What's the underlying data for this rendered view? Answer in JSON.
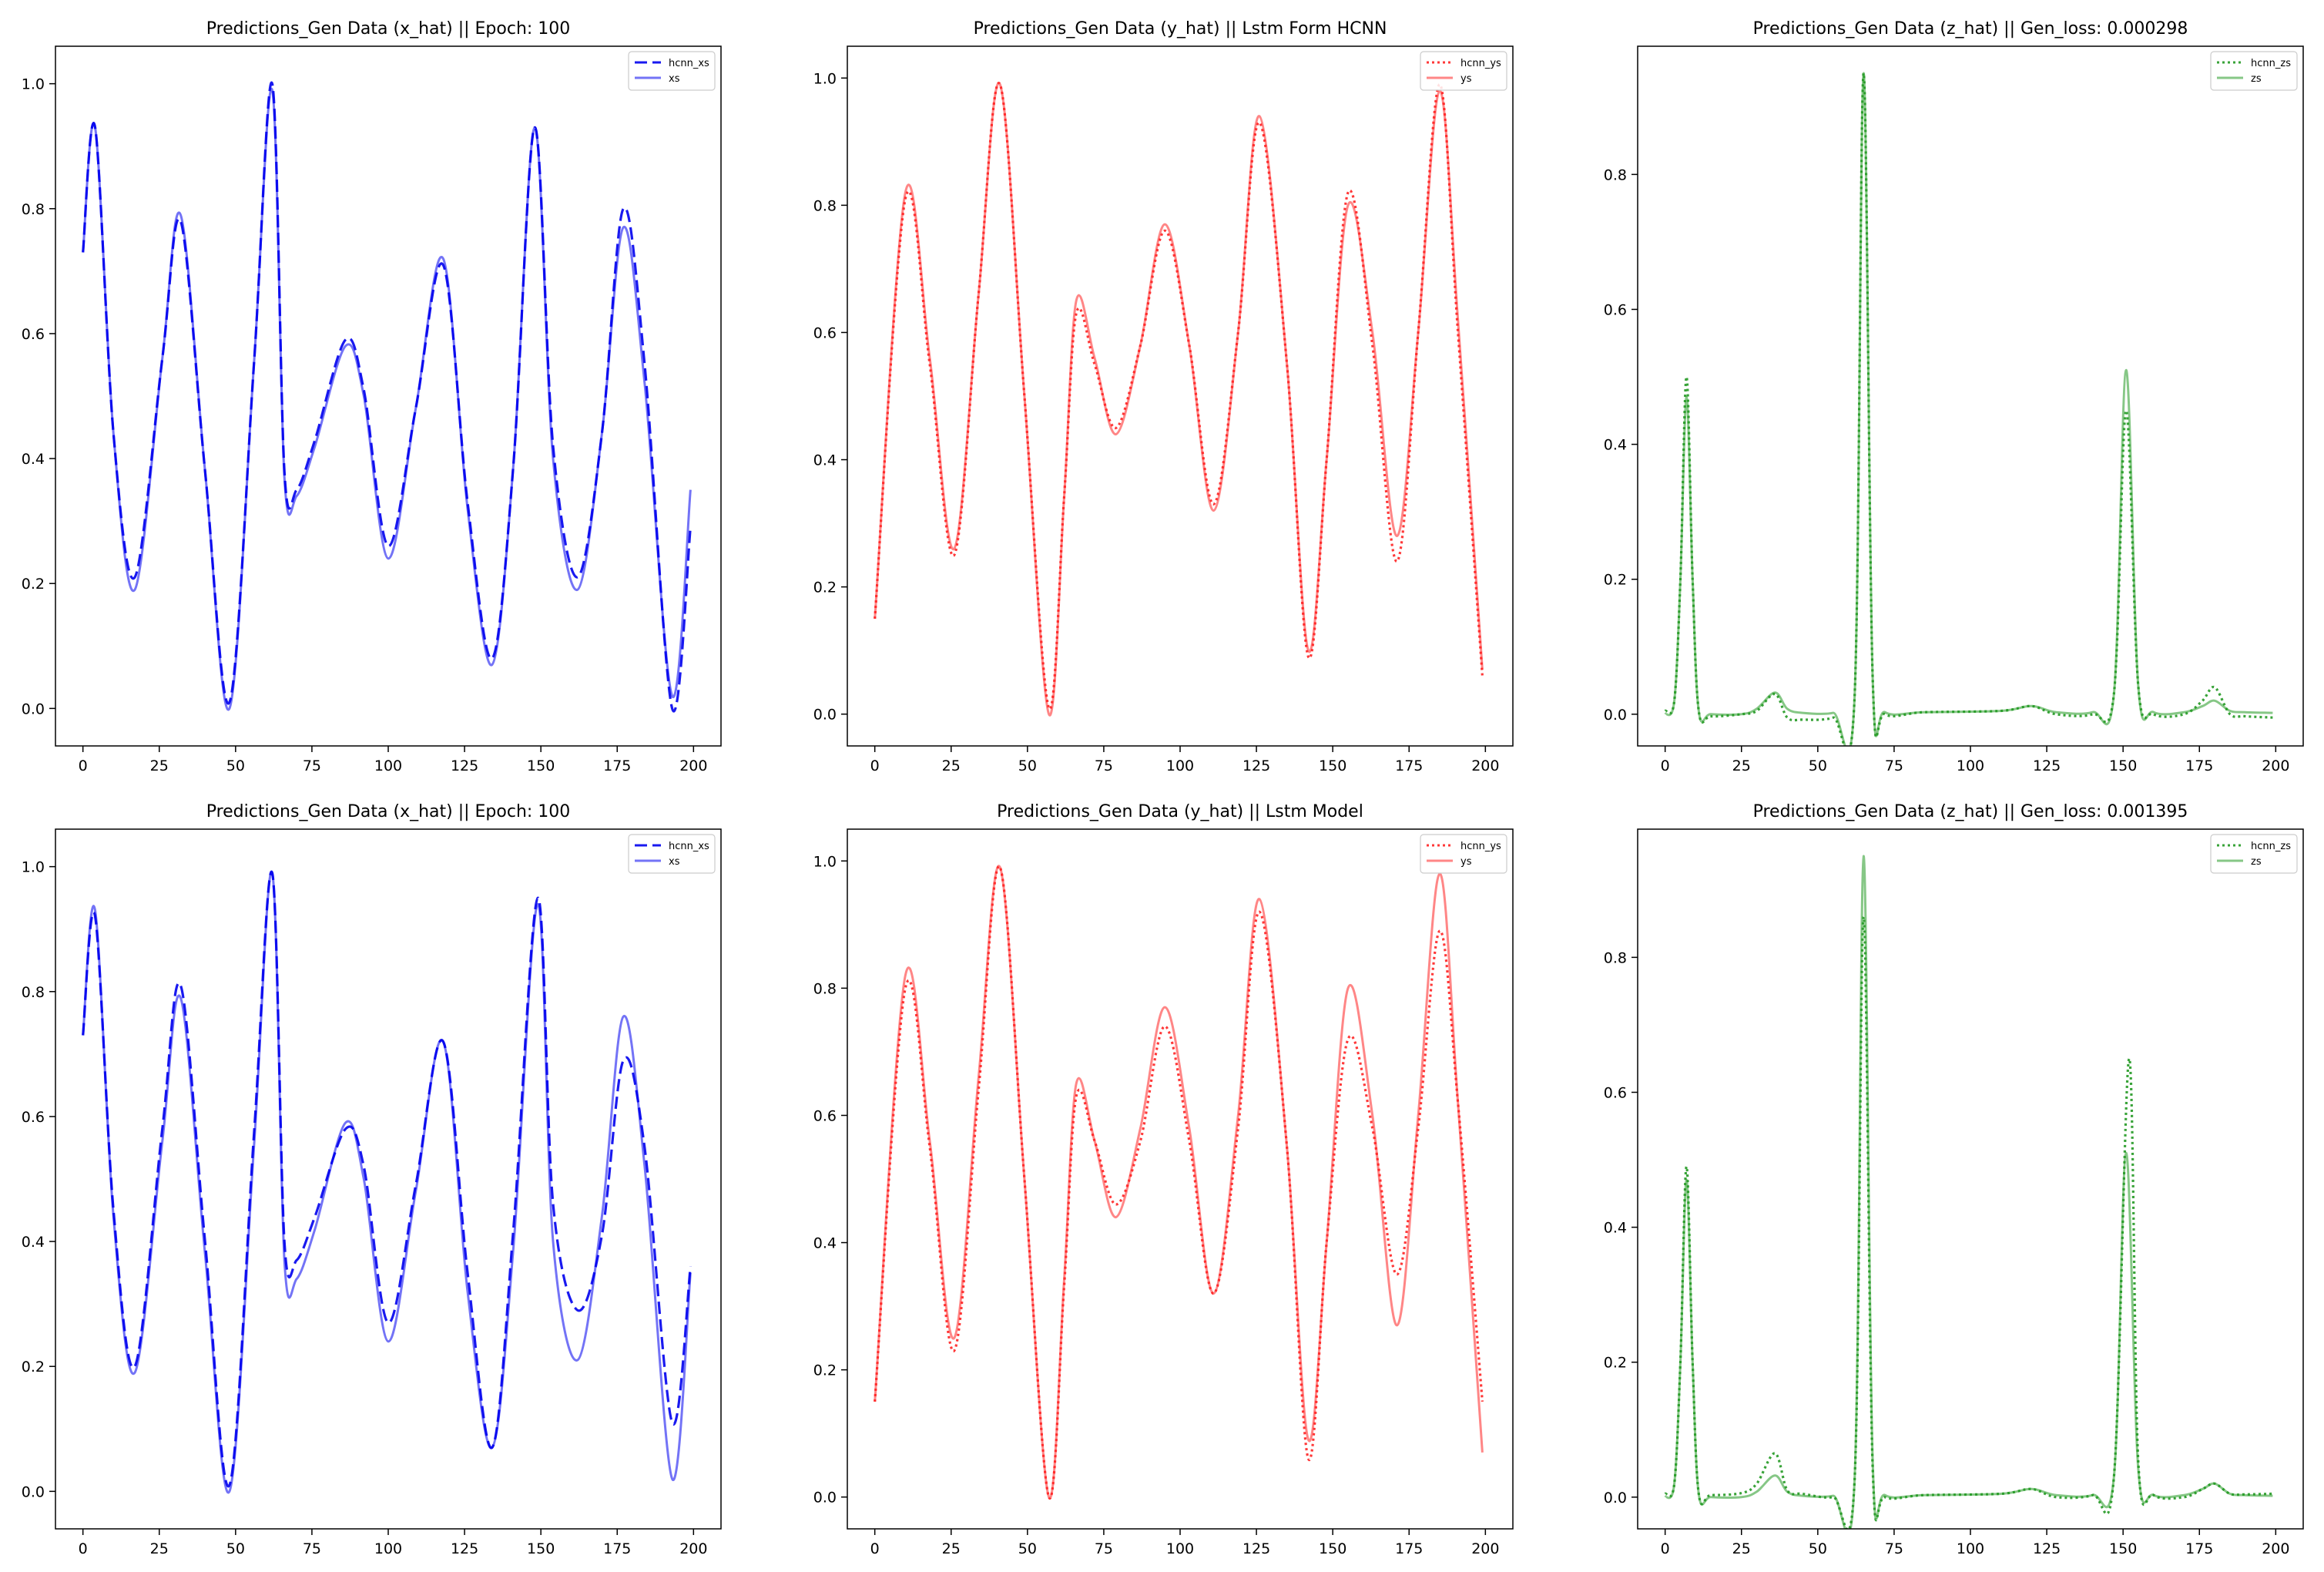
{
  "figure": {
    "colors": {
      "x": "#0000ee",
      "y": "#ff2222",
      "z": "#229922"
    }
  },
  "chart_data": [
    {
      "type": "line",
      "title": "Predictions_Gen Data (x_hat) || Epoch: 100",
      "xlim": [
        -9,
        209
      ],
      "ylim": [
        -0.06,
        1.06
      ],
      "xticks": [
        "0",
        "25",
        "50",
        "75",
        "100",
        "125",
        "150",
        "175",
        "200"
      ],
      "yticks": [
        "0.0",
        "0.2",
        "0.4",
        "0.6",
        "0.8",
        "1.0"
      ],
      "legend_placement": "upper-right",
      "grid": false,
      "series": [
        {
          "name": "hcnn_xs",
          "color": "#0000ee",
          "style": "dashed",
          "alpha": 0.9,
          "x": [
            0,
            4,
            10,
            17,
            26,
            32,
            40,
            48,
            56,
            62,
            66,
            70,
            76,
            86,
            92,
            100,
            109,
            118,
            126,
            134,
            141,
            148,
            154,
            162,
            170,
            177,
            184,
            193,
            199
          ],
          "y": [
            0.73,
            0.93,
            0.44,
            0.21,
            0.56,
            0.78,
            0.38,
            0.01,
            0.55,
            1.0,
            0.38,
            0.35,
            0.43,
            0.59,
            0.51,
            0.26,
            0.48,
            0.71,
            0.33,
            0.08,
            0.39,
            0.93,
            0.42,
            0.21,
            0.44,
            0.8,
            0.55,
            0.0,
            0.29
          ]
        },
        {
          "name": "xs",
          "color": "#0000ee",
          "style": "solid",
          "alpha": 0.55,
          "x": [
            0,
            4,
            10,
            17,
            26,
            32,
            40,
            48,
            56,
            62,
            66,
            70,
            76,
            86,
            92,
            100,
            109,
            118,
            126,
            134,
            141,
            148,
            154,
            162,
            170,
            177,
            184,
            193,
            199
          ],
          "y": [
            0.73,
            0.93,
            0.44,
            0.19,
            0.56,
            0.79,
            0.38,
            0.0,
            0.55,
            0.99,
            0.37,
            0.34,
            0.42,
            0.58,
            0.5,
            0.24,
            0.48,
            0.72,
            0.32,
            0.07,
            0.39,
            0.93,
            0.4,
            0.19,
            0.44,
            0.77,
            0.52,
            0.02,
            0.35
          ]
        }
      ]
    },
    {
      "type": "line",
      "title": "Predictions_Gen Data (y_hat) || Lstm Form HCNN",
      "xlim": [
        -9,
        209
      ],
      "ylim": [
        -0.05,
        1.05
      ],
      "xticks": [
        "0",
        "25",
        "50",
        "75",
        "100",
        "125",
        "150",
        "175",
        "200"
      ],
      "yticks": [
        "0.0",
        "0.2",
        "0.4",
        "0.6",
        "0.8",
        "1.0"
      ],
      "legend_placement": "upper-right",
      "grid": false,
      "series": [
        {
          "name": "hcnn_ys",
          "color": "#ff2222",
          "style": "dotted",
          "alpha": 0.9,
          "x": [
            0,
            10,
            18,
            26,
            34,
            41,
            49,
            57,
            62,
            66,
            72,
            79,
            87,
            95,
            103,
            111,
            119,
            126,
            135,
            142,
            148,
            155,
            163,
            171,
            178,
            185,
            191,
            199
          ],
          "y": [
            0.15,
            0.81,
            0.55,
            0.25,
            0.66,
            0.99,
            0.5,
            0.01,
            0.34,
            0.63,
            0.55,
            0.45,
            0.58,
            0.76,
            0.58,
            0.33,
            0.6,
            0.93,
            0.55,
            0.09,
            0.4,
            0.82,
            0.58,
            0.24,
            0.6,
            0.99,
            0.6,
            0.06
          ]
        },
        {
          "name": "ys",
          "color": "#ff2222",
          "style": "solid",
          "alpha": 0.55,
          "x": [
            0,
            10,
            18,
            26,
            34,
            41,
            49,
            57,
            62,
            66,
            72,
            79,
            87,
            95,
            103,
            111,
            119,
            126,
            135,
            142,
            148,
            155,
            163,
            171,
            178,
            185,
            191,
            199
          ],
          "y": [
            0.15,
            0.82,
            0.56,
            0.26,
            0.66,
            0.99,
            0.5,
            0.0,
            0.34,
            0.65,
            0.56,
            0.44,
            0.58,
            0.77,
            0.58,
            0.32,
            0.6,
            0.94,
            0.55,
            0.1,
            0.4,
            0.8,
            0.6,
            0.28,
            0.6,
            0.98,
            0.62,
            0.07
          ]
        }
      ]
    },
    {
      "type": "line",
      "title": "Predictions_Gen Data (z_hat) || Gen_loss: 0.000298",
      "xlim": [
        -9,
        209
      ],
      "ylim": [
        -0.047,
        0.99
      ],
      "xticks": [
        "0",
        "25",
        "50",
        "75",
        "100",
        "125",
        "150",
        "175",
        "200"
      ],
      "yticks": [
        "0.0",
        "0.2",
        "0.4",
        "0.6",
        "0.8"
      ],
      "legend_placement": "upper-right",
      "grid": false,
      "series": [
        {
          "name": "hcnn_zs",
          "color": "#229922",
          "style": "dotted",
          "alpha": 0.9,
          "x": [
            0,
            3,
            5,
            7,
            9,
            11,
            15,
            25,
            30,
            36,
            40,
            45,
            55,
            62,
            65,
            68,
            72,
            85,
            110,
            120,
            128,
            140,
            147,
            151,
            155,
            160,
            170,
            176,
            180,
            185,
            190,
            199
          ],
          "y": [
            0.005,
            0.02,
            0.2,
            0.5,
            0.2,
            0.005,
            -0.003,
            0.0,
            0.005,
            0.03,
            -0.005,
            -0.008,
            -0.005,
            0.02,
            0.95,
            0.05,
            0.0,
            0.003,
            0.005,
            0.012,
            0.0,
            0.0,
            0.03,
            0.45,
            0.04,
            0.0,
            0.0,
            0.02,
            0.04,
            0.0,
            -0.003,
            -0.005
          ]
        },
        {
          "name": "zs",
          "color": "#229922",
          "style": "solid",
          "alpha": 0.55,
          "x": [
            0,
            3,
            5,
            7,
            9,
            11,
            15,
            25,
            30,
            36,
            40,
            45,
            55,
            62,
            65,
            68,
            72,
            85,
            110,
            120,
            128,
            140,
            147,
            151,
            155,
            160,
            170,
            176,
            180,
            185,
            190,
            199
          ],
          "y": [
            0.0,
            0.02,
            0.2,
            0.47,
            0.2,
            0.005,
            0.0,
            0.0,
            0.008,
            0.032,
            0.008,
            0.002,
            0.002,
            0.02,
            0.95,
            0.05,
            0.003,
            0.003,
            0.005,
            0.012,
            0.003,
            0.003,
            0.03,
            0.51,
            0.04,
            0.003,
            0.003,
            0.012,
            0.02,
            0.005,
            0.003,
            0.002
          ]
        }
      ]
    },
    {
      "type": "line",
      "title": "Predictions_Gen Data (x_hat) || Epoch: 100",
      "xlim": [
        -9,
        209
      ],
      "ylim": [
        -0.06,
        1.06
      ],
      "xticks": [
        "0",
        "25",
        "50",
        "75",
        "100",
        "125",
        "150",
        "175",
        "200"
      ],
      "yticks": [
        "0.0",
        "0.2",
        "0.4",
        "0.6",
        "0.8",
        "1.0"
      ],
      "legend_placement": "upper-right",
      "grid": false,
      "series": [
        {
          "name": "hcnn_xs",
          "color": "#0000ee",
          "style": "dashed",
          "alpha": 0.9,
          "x": [
            0,
            4,
            10,
            17,
            26,
            32,
            40,
            48,
            56,
            62,
            66,
            70,
            76,
            86,
            92,
            100,
            109,
            118,
            126,
            134,
            141,
            149,
            154,
            162,
            170,
            177,
            184,
            193,
            199
          ],
          "y": [
            0.73,
            0.92,
            0.45,
            0.2,
            0.58,
            0.81,
            0.4,
            0.01,
            0.57,
            0.99,
            0.4,
            0.37,
            0.44,
            0.58,
            0.52,
            0.27,
            0.49,
            0.72,
            0.35,
            0.07,
            0.42,
            0.95,
            0.46,
            0.29,
            0.41,
            0.69,
            0.55,
            0.11,
            0.36
          ]
        },
        {
          "name": "xs",
          "color": "#0000ee",
          "style": "solid",
          "alpha": 0.55,
          "x": [
            0,
            4,
            10,
            17,
            26,
            32,
            40,
            48,
            56,
            62,
            66,
            70,
            76,
            86,
            92,
            100,
            109,
            118,
            126,
            134,
            141,
            149,
            154,
            162,
            170,
            177,
            184,
            193,
            199
          ],
          "y": [
            0.73,
            0.93,
            0.44,
            0.19,
            0.56,
            0.79,
            0.38,
            0.0,
            0.55,
            0.99,
            0.37,
            0.34,
            0.42,
            0.59,
            0.5,
            0.24,
            0.48,
            0.72,
            0.32,
            0.07,
            0.39,
            0.94,
            0.4,
            0.21,
            0.44,
            0.76,
            0.52,
            0.02,
            0.35
          ]
        }
      ]
    },
    {
      "type": "line",
      "title": "Predictions_Gen Data (y_hat) || Lstm  Model",
      "xlim": [
        -9,
        209
      ],
      "ylim": [
        -0.05,
        1.05
      ],
      "xticks": [
        "0",
        "25",
        "50",
        "75",
        "100",
        "125",
        "150",
        "175",
        "200"
      ],
      "yticks": [
        "0.0",
        "0.2",
        "0.4",
        "0.6",
        "0.8",
        "1.0"
      ],
      "legend_placement": "upper-right",
      "grid": false,
      "series": [
        {
          "name": "hcnn_ys",
          "color": "#ff2222",
          "style": "dotted",
          "alpha": 0.9,
          "x": [
            0,
            10,
            18,
            26,
            34,
            41,
            49,
            57,
            62,
            66,
            72,
            79,
            87,
            95,
            103,
            111,
            119,
            126,
            135,
            142,
            148,
            155,
            163,
            171,
            178,
            185,
            191,
            199
          ],
          "y": [
            0.15,
            0.8,
            0.55,
            0.23,
            0.64,
            0.99,
            0.5,
            0.0,
            0.33,
            0.63,
            0.56,
            0.46,
            0.56,
            0.74,
            0.56,
            0.32,
            0.58,
            0.92,
            0.55,
            0.06,
            0.4,
            0.72,
            0.58,
            0.35,
            0.58,
            0.89,
            0.62,
            0.15
          ]
        },
        {
          "name": "ys",
          "color": "#ff2222",
          "style": "solid",
          "alpha": 0.55,
          "x": [
            0,
            10,
            18,
            26,
            34,
            41,
            49,
            57,
            62,
            66,
            72,
            79,
            87,
            95,
            103,
            111,
            119,
            126,
            135,
            142,
            148,
            155,
            163,
            171,
            178,
            185,
            191,
            199
          ],
          "y": [
            0.15,
            0.82,
            0.56,
            0.25,
            0.66,
            0.99,
            0.5,
            0.0,
            0.34,
            0.65,
            0.56,
            0.44,
            0.58,
            0.77,
            0.58,
            0.32,
            0.6,
            0.94,
            0.55,
            0.09,
            0.4,
            0.8,
            0.6,
            0.27,
            0.6,
            0.98,
            0.62,
            0.07
          ]
        }
      ]
    },
    {
      "type": "line",
      "title": "Predictions_Gen Data (z_hat) || Gen_loss: 0.001395",
      "xlim": [
        -9,
        209
      ],
      "ylim": [
        -0.047,
        0.99
      ],
      "xticks": [
        "0",
        "25",
        "50",
        "75",
        "100",
        "125",
        "150",
        "175",
        "200"
      ],
      "yticks": [
        "0.0",
        "0.2",
        "0.4",
        "0.6",
        "0.8"
      ],
      "legend_placement": "upper-right",
      "grid": false,
      "series": [
        {
          "name": "hcnn_zs",
          "color": "#229922",
          "style": "dotted",
          "alpha": 0.9,
          "x": [
            0,
            3,
            5,
            7,
            9,
            11,
            15,
            25,
            30,
            36,
            40,
            45,
            55,
            62,
            65,
            68,
            72,
            85,
            110,
            120,
            128,
            140,
            147,
            152,
            155,
            160,
            170,
            176,
            180,
            185,
            190,
            199
          ],
          "y": [
            0.005,
            0.02,
            0.2,
            0.49,
            0.2,
            0.005,
            0.003,
            0.006,
            0.02,
            0.065,
            0.01,
            0.005,
            0.0,
            0.02,
            0.86,
            0.04,
            0.0,
            0.003,
            0.005,
            0.012,
            0.0,
            0.003,
            0.03,
            0.65,
            0.05,
            0.003,
            0.0,
            0.012,
            0.02,
            0.005,
            0.004,
            0.005
          ]
        },
        {
          "name": "zs",
          "color": "#229922",
          "style": "solid",
          "alpha": 0.55,
          "x": [
            0,
            3,
            5,
            7,
            9,
            11,
            15,
            25,
            30,
            36,
            40,
            45,
            55,
            62,
            65,
            68,
            72,
            85,
            110,
            120,
            128,
            140,
            147,
            151,
            155,
            160,
            170,
            176,
            180,
            185,
            190,
            199
          ],
          "y": [
            0.0,
            0.02,
            0.2,
            0.47,
            0.2,
            0.005,
            0.0,
            0.0,
            0.008,
            0.032,
            0.008,
            0.002,
            0.002,
            0.02,
            0.95,
            0.05,
            0.003,
            0.003,
            0.005,
            0.012,
            0.003,
            0.003,
            0.03,
            0.51,
            0.04,
            0.003,
            0.003,
            0.012,
            0.02,
            0.005,
            0.003,
            0.002
          ]
        }
      ]
    }
  ]
}
